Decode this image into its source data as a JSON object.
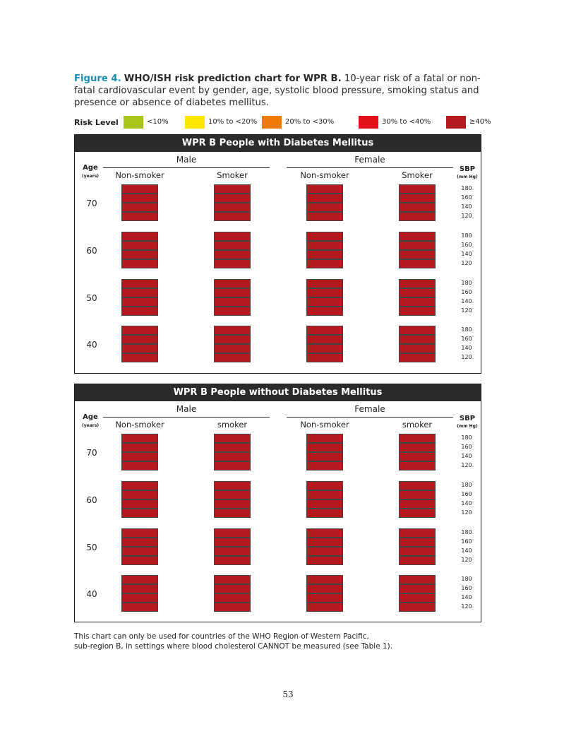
{
  "caption": {
    "label": "Figure 4.",
    "title": "WHO/ISH risk prediction chart for WPR B.",
    "text": "10-year risk of a fatal or non-fatal cardiovascular event by gender, age, systolic blood pressure, smoking status and presence or absence of diabetes mellitus."
  },
  "legend": {
    "title": "Risk Level",
    "items": [
      {
        "label": "<10%",
        "color": "#a8c61a"
      },
      {
        "label": "10% to <20%",
        "color": "#ffe800"
      },
      {
        "label": "20% to <30%",
        "color": "#ee7b07"
      },
      {
        "label": "30% to <40%",
        "color": "#e4101a"
      },
      {
        "label": "≥40%",
        "color": "#b41a1d"
      }
    ]
  },
  "footnote": {
    "line1": "This chart can only be used for countries of the WHO Region of Western Pacific,",
    "line2": "sub-region B, in settings where blood cholesterol CANNOT be measured (see Table 1)."
  },
  "page_number": "53",
  "chart_data": [
    {
      "type": "heatmap",
      "title": "WPR B People with Diabetes Mellitus",
      "gender_labels": [
        "Male",
        "Female"
      ],
      "column_labels": [
        "Non-smoker",
        "Smoker",
        "Non-smoker",
        "Smoker"
      ],
      "age_header": "Age",
      "age_unit": "(years)",
      "sbp_header": "SBP",
      "sbp_unit": "(mm Hg)",
      "ages": [
        "70",
        "60",
        "50",
        "40"
      ],
      "sbp_levels": [
        "180",
        "160",
        "140",
        "120"
      ],
      "risk_levels": [
        "<10%",
        "10% to <20%",
        "20% to <30%",
        "30% to <40%",
        "≥40%"
      ],
      "cells": [
        [
          [
            4,
            4,
            4,
            4
          ],
          [
            4,
            4,
            4,
            4
          ],
          [
            4,
            4,
            4,
            4
          ],
          [
            4,
            4,
            4,
            4
          ]
        ],
        [
          [
            4,
            4,
            4,
            4
          ],
          [
            4,
            4,
            4,
            4
          ],
          [
            4,
            4,
            4,
            4
          ],
          [
            4,
            4,
            4,
            4
          ]
        ],
        [
          [
            4,
            4,
            4,
            4
          ],
          [
            4,
            4,
            4,
            4
          ],
          [
            4,
            4,
            4,
            4
          ],
          [
            4,
            4,
            4,
            4
          ]
        ],
        [
          [
            4,
            4,
            4,
            4
          ],
          [
            4,
            4,
            4,
            4
          ],
          [
            4,
            4,
            4,
            4
          ],
          [
            4,
            4,
            4,
            4
          ]
        ]
      ]
    },
    {
      "type": "heatmap",
      "title": "WPR B People without Diabetes Mellitus",
      "gender_labels": [
        "Male",
        "Female"
      ],
      "column_labels": [
        "Non-smoker",
        "smoker",
        "Non-smoker",
        "smoker"
      ],
      "age_header": "Age",
      "age_unit": "(years)",
      "sbp_header": "SBP",
      "sbp_unit": "(mm Hg)",
      "ages": [
        "70",
        "60",
        "50",
        "40"
      ],
      "sbp_levels": [
        "180",
        "160",
        "140",
        "120"
      ],
      "risk_levels": [
        "<10%",
        "10% to <20%",
        "20% to <30%",
        "30% to <40%",
        "≥40%"
      ],
      "cells": [
        [
          [
            4,
            4,
            4,
            4
          ],
          [
            4,
            4,
            4,
            4
          ],
          [
            4,
            4,
            4,
            4
          ],
          [
            4,
            4,
            4,
            4
          ]
        ],
        [
          [
            4,
            4,
            4,
            4
          ],
          [
            4,
            4,
            4,
            4
          ],
          [
            4,
            4,
            4,
            4
          ],
          [
            4,
            4,
            4,
            4
          ]
        ],
        [
          [
            4,
            4,
            4,
            4
          ],
          [
            4,
            4,
            4,
            4
          ],
          [
            4,
            4,
            4,
            4
          ],
          [
            4,
            4,
            4,
            4
          ]
        ],
        [
          [
            4,
            4,
            4,
            4
          ],
          [
            4,
            4,
            4,
            4
          ],
          [
            4,
            4,
            4,
            4
          ],
          [
            4,
            4,
            4,
            4
          ]
        ]
      ]
    }
  ]
}
